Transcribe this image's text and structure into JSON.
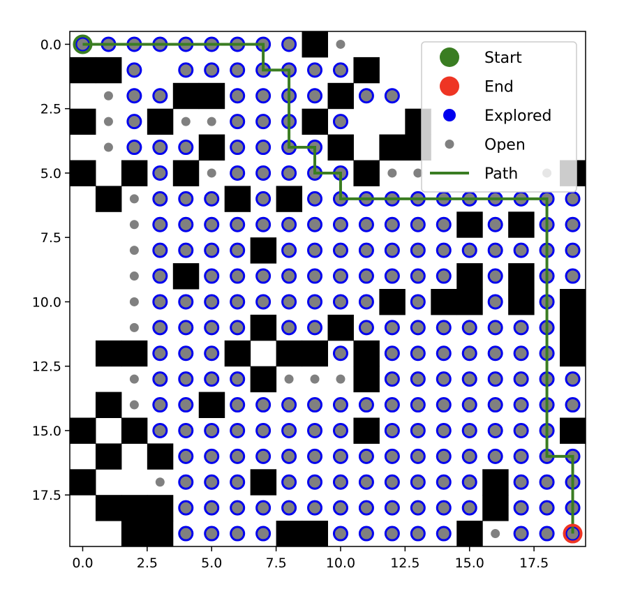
{
  "chart_data": {
    "type": "scatter",
    "title": "",
    "xlabel": "",
    "ylabel": "",
    "xlim": [
      -0.5,
      19.5
    ],
    "ylim": [
      19.5,
      -0.5
    ],
    "y_inverted": true,
    "x_ticks": [
      "0.0",
      "2.5",
      "5.0",
      "7.5",
      "10.0",
      "12.5",
      "15.0",
      "17.5"
    ],
    "y_ticks": [
      "0.0",
      "2.5",
      "5.0",
      "7.5",
      "10.0",
      "12.5",
      "15.0",
      "17.5"
    ],
    "grid_size": [
      20,
      20
    ],
    "legend_position": "upper-right",
    "legend": [
      {
        "key": "start",
        "label": "Start"
      },
      {
        "key": "end",
        "label": "End"
      },
      {
        "key": "explored",
        "label": "Explored"
      },
      {
        "key": "open",
        "label": "Open"
      },
      {
        "key": "path",
        "label": "Path"
      }
    ],
    "colors": {
      "wall": "#000000",
      "start": "#3a7d22",
      "end": "#ee3524",
      "explored_ring": "#0000ee",
      "node_fill": "#808080",
      "path": "#3a7d22"
    },
    "grid_rows": [
      "..........#........",
      "###......o.o.#......",
      "....o....#........",
      "#...#........#....#.",
      "....o....#..#.##...",
      "#...#.#..........#....",
      "....#...#.#.........",
      "....................",
      "..........#.........",
      "........#...........",
      "...............#.#.##",
      "..........#..#......#",
      "....##..#.#...#.....#",
      "..........#.....#.....",
      "....#.....#..........",
      "#...#.........#.....#",
      ".#..#...............",
      "#..........#......#.",
      ".###...........#..#.",
      "...##......##....#..."
    ],
    "walls": [
      [
        9,
        0
      ],
      [
        0,
        1
      ],
      [
        1,
        1
      ],
      [
        11,
        1
      ],
      [
        4,
        2
      ],
      [
        5,
        2
      ],
      [
        10,
        2
      ],
      [
        0,
        3
      ],
      [
        3,
        3
      ],
      [
        9,
        3
      ],
      [
        13,
        3
      ],
      [
        5,
        4
      ],
      [
        10,
        4
      ],
      [
        12,
        4
      ],
      [
        13,
        4
      ],
      [
        0,
        5
      ],
      [
        2,
        5
      ],
      [
        4,
        5
      ],
      [
        11,
        5
      ],
      [
        19,
        5
      ],
      [
        1,
        6
      ],
      [
        6,
        6
      ],
      [
        8,
        6
      ],
      [
        15,
        7
      ],
      [
        17,
        7
      ],
      [
        7,
        8
      ],
      [
        4,
        9
      ],
      [
        15,
        9
      ],
      [
        17,
        9
      ],
      [
        12,
        10
      ],
      [
        14,
        10
      ],
      [
        15,
        10
      ],
      [
        17,
        10
      ],
      [
        19,
        10
      ],
      [
        7,
        11
      ],
      [
        10,
        11
      ],
      [
        19,
        11
      ],
      [
        1,
        12
      ],
      [
        2,
        12
      ],
      [
        6,
        12
      ],
      [
        8,
        12
      ],
      [
        9,
        12
      ],
      [
        11,
        12
      ],
      [
        19,
        12
      ],
      [
        7,
        13
      ],
      [
        11,
        13
      ],
      [
        1,
        14
      ],
      [
        5,
        14
      ],
      [
        0,
        15
      ],
      [
        2,
        15
      ],
      [
        11,
        15
      ],
      [
        19,
        15
      ],
      [
        1,
        16
      ],
      [
        3,
        16
      ],
      [
        0,
        17
      ],
      [
        7,
        17
      ],
      [
        16,
        17
      ],
      [
        1,
        18
      ],
      [
        2,
        18
      ],
      [
        3,
        18
      ],
      [
        16,
        18
      ],
      [
        2,
        19
      ],
      [
        3,
        19
      ],
      [
        8,
        19
      ],
      [
        9,
        19
      ],
      [
        15,
        19
      ]
    ],
    "open_nodes": [
      [
        9,
        0
      ],
      [
        10,
        0
      ],
      [
        1,
        2
      ],
      [
        1,
        3
      ],
      [
        4,
        3
      ],
      [
        5,
        3
      ],
      [
        1,
        4
      ],
      [
        5,
        5
      ],
      [
        12,
        5
      ],
      [
        13,
        5
      ],
      [
        18,
        5
      ],
      [
        2,
        6
      ],
      [
        2,
        7
      ],
      [
        2,
        8
      ],
      [
        2,
        9
      ],
      [
        2,
        10
      ],
      [
        2,
        11
      ],
      [
        2,
        13
      ],
      [
        8,
        13
      ],
      [
        9,
        13
      ],
      [
        10,
        13
      ],
      [
        2,
        14
      ],
      [
        3,
        17
      ],
      [
        16,
        19
      ]
    ],
    "unexplored_blank": [
      [
        0,
        2
      ],
      [
        0,
        4
      ],
      [
        1,
        5
      ],
      [
        3,
        1
      ],
      [
        0,
        6
      ],
      [
        0,
        7
      ],
      [
        1,
        7
      ],
      [
        0,
        8
      ],
      [
        1,
        8
      ],
      [
        0,
        9
      ],
      [
        1,
        9
      ],
      [
        0,
        10
      ],
      [
        1,
        10
      ],
      [
        0,
        11
      ],
      [
        1,
        11
      ],
      [
        0,
        12
      ],
      [
        0,
        13
      ],
      [
        1,
        13
      ],
      [
        0,
        14
      ],
      [
        1,
        15
      ],
      [
        0,
        16
      ],
      [
        2,
        16
      ],
      [
        1,
        17
      ],
      [
        2,
        17
      ],
      [
        0,
        18
      ],
      [
        0,
        19
      ],
      [
        1,
        19
      ],
      [
        7,
        12
      ],
      [
        13,
        2
      ],
      [
        14,
        2
      ],
      [
        15,
        2
      ],
      [
        16,
        2
      ],
      [
        17,
        2
      ],
      [
        18,
        2
      ],
      [
        19,
        2
      ],
      [
        12,
        1
      ],
      [
        13,
        1
      ],
      [
        14,
        1
      ],
      [
        15,
        1
      ],
      [
        16,
        1
      ],
      [
        17,
        1
      ],
      [
        18,
        1
      ],
      [
        19,
        1
      ],
      [
        11,
        0
      ],
      [
        12,
        0
      ],
      [
        13,
        0
      ],
      [
        14,
        0
      ],
      [
        15,
        0
      ],
      [
        16,
        0
      ],
      [
        17,
        0
      ],
      [
        18,
        0
      ],
      [
        19,
        0
      ],
      [
        11,
        3
      ],
      [
        12,
        3
      ],
      [
        14,
        3
      ],
      [
        15,
        3
      ],
      [
        16,
        3
      ],
      [
        17,
        3
      ],
      [
        18,
        3
      ],
      [
        19,
        3
      ],
      [
        11,
        4
      ],
      [
        14,
        4
      ],
      [
        15,
        4
      ],
      [
        16,
        4
      ],
      [
        17,
        4
      ],
      [
        18,
        4
      ],
      [
        19,
        4
      ],
      [
        14,
        5
      ],
      [
        15,
        5
      ],
      [
        16,
        5
      ],
      [
        17,
        5
      ]
    ],
    "start": [
      0,
      0
    ],
    "end": [
      19,
      19
    ],
    "path": [
      [
        0,
        0
      ],
      [
        7,
        0
      ],
      [
        7,
        1
      ],
      [
        8,
        1
      ],
      [
        8,
        4
      ],
      [
        9,
        4
      ],
      [
        9,
        5
      ],
      [
        10,
        5
      ],
      [
        10,
        6
      ],
      [
        18,
        6
      ],
      [
        18,
        16
      ],
      [
        19,
        16
      ],
      [
        19,
        19
      ]
    ]
  }
}
